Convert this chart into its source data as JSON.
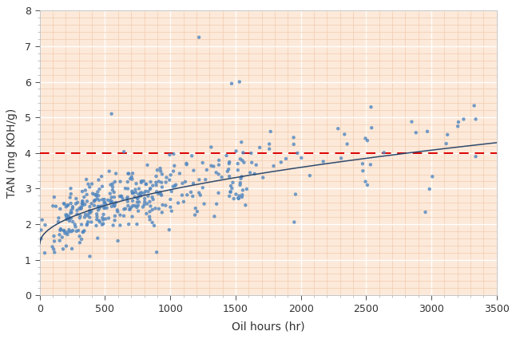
{
  "title": "",
  "xlabel": "Oil hours (hr)",
  "ylabel": "TAN (mg KOH/g)",
  "xlim": [
    0,
    3500
  ],
  "ylim": [
    0,
    8
  ],
  "xticks": [
    0,
    500,
    1000,
    1500,
    2000,
    2500,
    3000,
    3500
  ],
  "yticks": [
    0,
    1,
    2,
    3,
    4,
    5,
    6,
    7,
    8
  ],
  "bg_color": "#fce9d9",
  "major_grid_color": "#ffffff",
  "minor_grid_color": "#f2c8aa",
  "scatter_color": "#4f86c0",
  "trendline_color": "#2e4a6e",
  "redline_color": "#dd0000",
  "redline_y": 4.0,
  "scatter_seed": 12,
  "scatter_n": 420
}
